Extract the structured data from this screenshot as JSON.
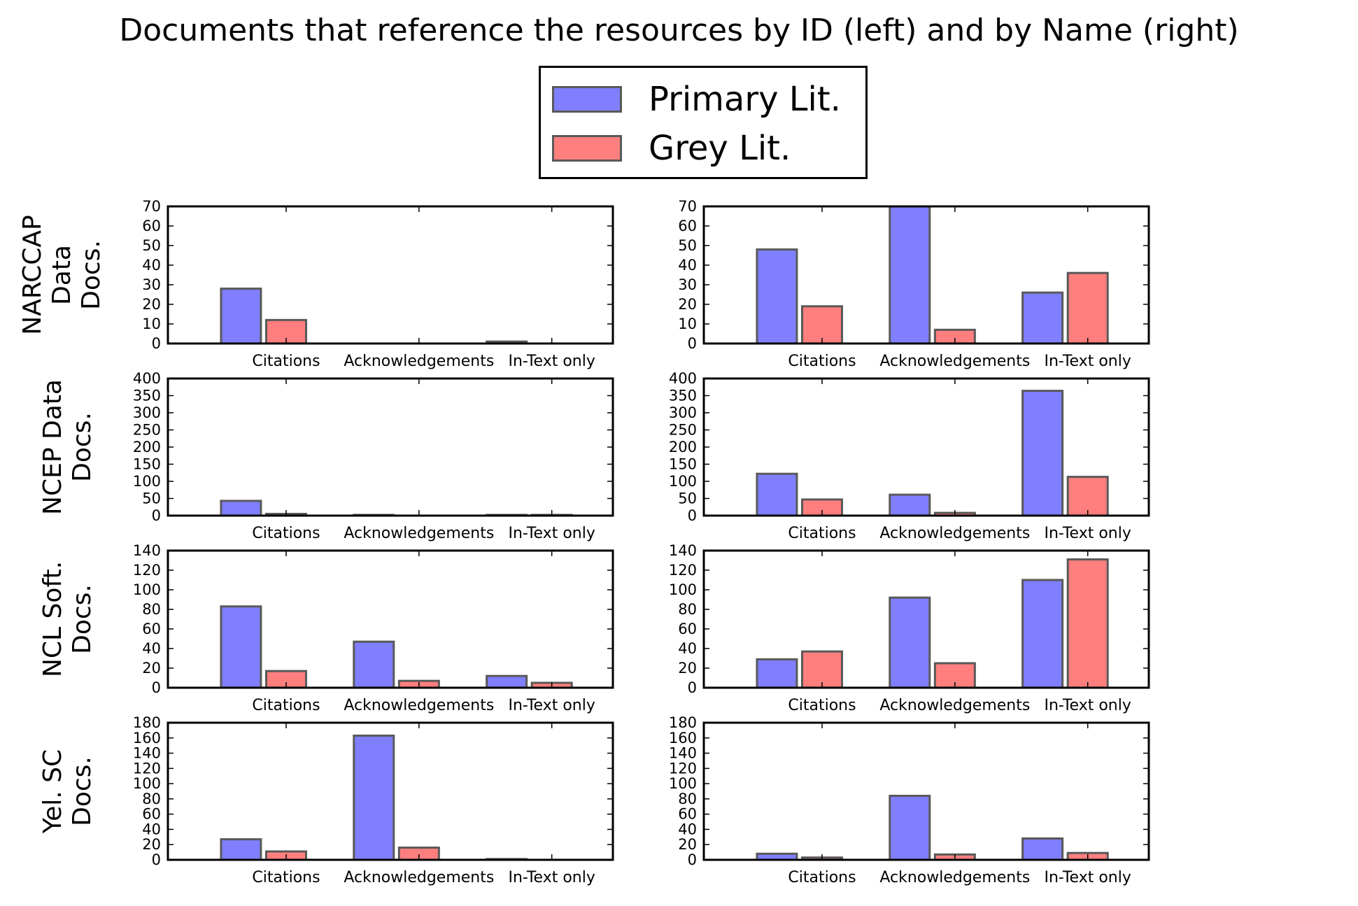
{
  "title": "Documents that reference the resources by ID (left) and by Name (right)",
  "legend": [
    {
      "label": "Primary Lit.",
      "color": "#7f7fff"
    },
    {
      "label": "Grey Lit.",
      "color": "#ff7f7f"
    }
  ],
  "chart_data": [
    {
      "type": "bar",
      "panel": "ID",
      "ylabel": "NARCCAP\nData\nDocs.",
      "categories": [
        "Citations",
        "Acknowledgements",
        "In-Text only"
      ],
      "ylim": [
        0,
        70
      ],
      "yticks": [
        0,
        10,
        20,
        30,
        40,
        50,
        60,
        70
      ],
      "series": [
        {
          "name": "Primary Lit.",
          "values": [
            28,
            0,
            1
          ]
        },
        {
          "name": "Grey Lit.",
          "values": [
            12,
            0,
            0
          ]
        }
      ]
    },
    {
      "type": "bar",
      "panel": "Name",
      "ylabel": "",
      "categories": [
        "Citations",
        "Acknowledgements",
        "In-Text only"
      ],
      "ylim": [
        0,
        70
      ],
      "yticks": [
        0,
        10,
        20,
        30,
        40,
        50,
        60,
        70
      ],
      "series": [
        {
          "name": "Primary Lit.",
          "values": [
            48,
            70,
            26
          ]
        },
        {
          "name": "Grey Lit.",
          "values": [
            19,
            7,
            36
          ]
        }
      ]
    },
    {
      "type": "bar",
      "panel": "ID",
      "ylabel": "NCEP Data\nDocs.",
      "categories": [
        "Citations",
        "Acknowledgements",
        "In-Text only"
      ],
      "ylim": [
        0,
        400
      ],
      "yticks": [
        0,
        50,
        100,
        150,
        200,
        250,
        300,
        350,
        400
      ],
      "series": [
        {
          "name": "Primary Lit.",
          "values": [
            43,
            2,
            2
          ]
        },
        {
          "name": "Grey Lit.",
          "values": [
            5,
            0,
            2
          ]
        }
      ]
    },
    {
      "type": "bar",
      "panel": "Name",
      "ylabel": "",
      "categories": [
        "Citations",
        "Acknowledgements",
        "In-Text only"
      ],
      "ylim": [
        0,
        400
      ],
      "yticks": [
        0,
        50,
        100,
        150,
        200,
        250,
        300,
        350,
        400
      ],
      "series": [
        {
          "name": "Primary Lit.",
          "values": [
            122,
            61,
            364
          ]
        },
        {
          "name": "Grey Lit.",
          "values": [
            47,
            8,
            113
          ]
        }
      ]
    },
    {
      "type": "bar",
      "panel": "ID",
      "ylabel": "NCL Soft.\nDocs.",
      "categories": [
        "Citations",
        "Acknowledgements",
        "In-Text only"
      ],
      "ylim": [
        0,
        140
      ],
      "yticks": [
        0,
        20,
        40,
        60,
        80,
        100,
        120,
        140
      ],
      "series": [
        {
          "name": "Primary Lit.",
          "values": [
            83,
            47,
            12
          ]
        },
        {
          "name": "Grey Lit.",
          "values": [
            17,
            7,
            5
          ]
        }
      ]
    },
    {
      "type": "bar",
      "panel": "Name",
      "ylabel": "",
      "categories": [
        "Citations",
        "Acknowledgements",
        "In-Text only"
      ],
      "ylim": [
        0,
        140
      ],
      "yticks": [
        0,
        20,
        40,
        60,
        80,
        100,
        120,
        140
      ],
      "series": [
        {
          "name": "Primary Lit.",
          "values": [
            29,
            92,
            110
          ]
        },
        {
          "name": "Grey Lit.",
          "values": [
            37,
            25,
            131
          ]
        }
      ]
    },
    {
      "type": "bar",
      "panel": "ID",
      "ylabel": "Yel. SC\nDocs.",
      "categories": [
        "Citations",
        "Acknowledgements",
        "In-Text only"
      ],
      "ylim": [
        0,
        180
      ],
      "yticks": [
        0,
        20,
        40,
        60,
        80,
        100,
        120,
        140,
        160,
        180
      ],
      "series": [
        {
          "name": "Primary Lit.",
          "values": [
            27,
            163,
            1
          ]
        },
        {
          "name": "Grey Lit.",
          "values": [
            11,
            16,
            0
          ]
        }
      ]
    },
    {
      "type": "bar",
      "panel": "Name",
      "ylabel": "",
      "categories": [
        "Citations",
        "Acknowledgements",
        "In-Text only"
      ],
      "ylim": [
        0,
        180
      ],
      "yticks": [
        0,
        20,
        40,
        60,
        80,
        100,
        120,
        140,
        160,
        180
      ],
      "series": [
        {
          "name": "Primary Lit.",
          "values": [
            8,
            84,
            28
          ]
        },
        {
          "name": "Grey Lit.",
          "values": [
            3,
            7,
            9
          ]
        }
      ]
    }
  ]
}
